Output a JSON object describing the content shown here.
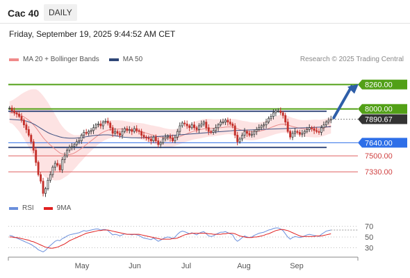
{
  "header": {
    "title": "Cac 40",
    "timeframe": "DAILY"
  },
  "timestamp": "Friday, September 19, 2025 9:44:52 AM CET",
  "legend": {
    "ma20_label": "MA 20 + Bollinger Bands",
    "ma50_label": "MA 50",
    "credit": "Research © 2025 Trading Central"
  },
  "rsi_legend": {
    "rsi_label": "RSI",
    "ma_label": "9MA"
  },
  "colors": {
    "green": "#52a017",
    "blue": "#2e6fe8",
    "navy": "#2a3f6b",
    "red_line": "#e88a8a",
    "band_fill": "#fde3e3",
    "ma20": "#e88a8a",
    "ma50": "#3b4f80",
    "candle_up": "#3a3a3a",
    "candle_up_body": "#ffffff",
    "candle_down": "#c4302b",
    "rsi": "#6a8fdc",
    "rsi_ma": "#e02020"
  },
  "chart_data": [
    {
      "type": "candlestick",
      "title": "Cac 40",
      "x_month_labels": [
        "May",
        "Jun",
        "Jul",
        "Aug",
        "Sep"
      ],
      "ylim": [
        7050,
        8420
      ],
      "levels": [
        {
          "value": 8260,
          "label": "8260.00",
          "style": "resistance",
          "color": "#52a017"
        },
        {
          "value": 8000,
          "label": "8000.00",
          "style": "resistance",
          "color": "#52a017"
        },
        {
          "value": 7890.67,
          "label": "7890.67",
          "style": "last",
          "color": "#333333"
        },
        {
          "value": 7640,
          "label": "7640.00",
          "style": "pivot",
          "color": "#2e6fe8"
        },
        {
          "value": 7500,
          "label": "7500.00",
          "style": "support",
          "color": "#e06060"
        },
        {
          "value": 7330,
          "label": "7330.00",
          "style": "support",
          "color": "#e06060"
        }
      ],
      "series_closes": [
        8010,
        7980,
        7960,
        7945,
        7920,
        7880,
        7830,
        7780,
        7720,
        7650,
        7560,
        7430,
        7300,
        7230,
        7100,
        7150,
        7240,
        7300,
        7380,
        7420,
        7400,
        7350,
        7460,
        7500,
        7560,
        7590,
        7600,
        7620,
        7650,
        7660,
        7720,
        7750,
        7740,
        7760,
        7770,
        7800,
        7830,
        7840,
        7820,
        7860,
        7870,
        7850,
        7800,
        7740,
        7760,
        7740,
        7720,
        7760,
        7790,
        7770,
        7780,
        7760,
        7790,
        7770,
        7760,
        7720,
        7700,
        7690,
        7680,
        7660,
        7700,
        7660,
        7620,
        7640,
        7680,
        7700,
        7710,
        7690,
        7660,
        7700,
        7760,
        7820,
        7850,
        7840,
        7820,
        7800,
        7830,
        7800,
        7780,
        7820,
        7840,
        7860,
        7800,
        7760,
        7750,
        7770,
        7800,
        7830,
        7860,
        7860,
        7880,
        7860,
        7840,
        7820,
        7720,
        7650,
        7680,
        7720,
        7760,
        7740,
        7720,
        7730,
        7760,
        7780,
        7800,
        7820,
        7830,
        7860,
        7900,
        7920,
        7960,
        7980,
        7980,
        7960,
        7930,
        7860,
        7760,
        7700,
        7740,
        7760,
        7750,
        7730,
        7740,
        7760,
        7780,
        7800,
        7790,
        7770,
        7760,
        7750,
        7800,
        7830,
        7860,
        7880,
        7890.67
      ],
      "ma20": [
        7960,
        7960,
        7955,
        7948,
        7940,
        7930,
        7915,
        7898,
        7880,
        7858,
        7830,
        7800,
        7765,
        7730,
        7695,
        7665,
        7640,
        7615,
        7595,
        7570,
        7550,
        7530,
        7520,
        7515,
        7512,
        7515,
        7520,
        7530,
        7545,
        7562,
        7580,
        7600,
        7620,
        7640,
        7660,
        7680,
        7700,
        7720,
        7738,
        7752,
        7764,
        7774,
        7780,
        7782,
        7784,
        7786,
        7786,
        7786,
        7784,
        7780,
        7776,
        7772,
        7768,
        7764,
        7760,
        7756,
        7750,
        7742,
        7734,
        7726,
        7720,
        7712,
        7706,
        7700,
        7694,
        7690,
        7688,
        7686,
        7686,
        7690,
        7696,
        7706,
        7716,
        7726,
        7736,
        7746,
        7756,
        7764,
        7770,
        7776,
        7782,
        7788,
        7792,
        7794,
        7794,
        7794,
        7796,
        7798,
        7800,
        7803,
        7806,
        7808,
        7808,
        7805,
        7800,
        7790,
        7780,
        7772,
        7766,
        7762,
        7758,
        7756,
        7756,
        7758,
        7762,
        7768,
        7774,
        7782,
        7792,
        7802,
        7812,
        7822,
        7830,
        7836,
        7838,
        7836,
        7830,
        7820,
        7812,
        7806,
        7800,
        7794,
        7790,
        7788,
        7786,
        7786,
        7786,
        7786,
        7786,
        7786,
        7790,
        7796,
        7804,
        7812,
        7820
      ],
      "ma50": [
        7890,
        7888,
        7886,
        7884,
        7882,
        7880,
        7876,
        7870,
        7862,
        7852,
        7840,
        7826,
        7810,
        7794,
        7778,
        7762,
        7748,
        7736,
        7726,
        7718,
        7710,
        7702,
        7696,
        7692,
        7690,
        7688,
        7688,
        7688,
        7690,
        7692,
        7696,
        7700,
        7704,
        7708,
        7712,
        7716,
        7718,
        7720,
        7722,
        7724,
        7724,
        7724,
        7722,
        7718,
        7714,
        7710,
        7706,
        7702,
        7698,
        7696,
        7694,
        7692,
        7692,
        7692,
        7692,
        7693,
        7694,
        7696,
        7698,
        7700,
        7702,
        7704,
        7706,
        7708,
        7710,
        7712,
        7714,
        7716,
        7718,
        7720,
        7722,
        7724,
        7726,
        7728,
        7730,
        7732,
        7734,
        7736,
        7738,
        7740,
        7742,
        7744,
        7746,
        7748,
        7750,
        7752,
        7754,
        7756,
        7758,
        7760,
        7762,
        7764,
        7766,
        7768,
        7770,
        7771,
        7772,
        7773,
        7774,
        7775,
        7776,
        7777,
        7778,
        7779,
        7780,
        7781,
        7782,
        7783,
        7784,
        7785,
        7786,
        7787,
        7788,
        7789,
        7790,
        7791,
        7792,
        7793,
        7794,
        7795,
        7796,
        7797,
        7798,
        7799,
        7800,
        7801,
        7802,
        7803,
        7804,
        7805,
        7806,
        7807,
        7808,
        7809,
        7810
      ],
      "upper_band_width": [
        120,
        130,
        150,
        175,
        200,
        230,
        260,
        290,
        320,
        350,
        380,
        410,
        430,
        440,
        445,
        440,
        430,
        410,
        390,
        370,
        345,
        320,
        295,
        270,
        250,
        230,
        210,
        190,
        175,
        160,
        150,
        140,
        130,
        125,
        120,
        115,
        112,
        110,
        108,
        106,
        104,
        102,
        100,
        98,
        96,
        94,
        92,
        90,
        88,
        86,
        86,
        86,
        86,
        88,
        90,
        92,
        94,
        96,
        98,
        100,
        102,
        104,
        106,
        106,
        104,
        102,
        100,
        98,
        96,
        94,
        92,
        90,
        90,
        90,
        92,
        94,
        96,
        98,
        100,
        102,
        104,
        104,
        102,
        100,
        98,
        96,
        94,
        92,
        90,
        88,
        86,
        86,
        86,
        88,
        92,
        96,
        100,
        102,
        104,
        104,
        102,
        100,
        98,
        96,
        94,
        92,
        92,
        92,
        94,
        96,
        98,
        100,
        102,
        102,
        100,
        98,
        96,
        94,
        92,
        92,
        90,
        90,
        90,
        92,
        94,
        96,
        98,
        100,
        100,
        98,
        96,
        94,
        92,
        90,
        90
      ]
    },
    {
      "type": "line",
      "title": "RSI",
      "ylim": [
        20,
        80
      ],
      "yticks": [
        70,
        50,
        30
      ],
      "series": [
        {
          "name": "RSI",
          "values": [
            53,
            52,
            50,
            48,
            46,
            44,
            42,
            40,
            38,
            36,
            33,
            30,
            26,
            24,
            22,
            25,
            30,
            34,
            38,
            42,
            44,
            43,
            47,
            49,
            52,
            54,
            55,
            56,
            57,
            58,
            60,
            62,
            61,
            62,
            63,
            64,
            65,
            65,
            63,
            64,
            64,
            62,
            58,
            54,
            55,
            54,
            52,
            54,
            56,
            55,
            55,
            54,
            55,
            54,
            53,
            50,
            48,
            47,
            46,
            45,
            48,
            45,
            42,
            44,
            47,
            49,
            50,
            49,
            47,
            50,
            55,
            59,
            61,
            60,
            58,
            56,
            58,
            56,
            54,
            57,
            59,
            60,
            56,
            52,
            51,
            52,
            55,
            57,
            59,
            59,
            60,
            58,
            56,
            54,
            46,
            42,
            45,
            49,
            52,
            50,
            49,
            50,
            53,
            55,
            57,
            58,
            59,
            61,
            63,
            64,
            66,
            67,
            67,
            65,
            62,
            56,
            50,
            46,
            49,
            51,
            50,
            49,
            50,
            52,
            54,
            55,
            54,
            53,
            52,
            51,
            55,
            58,
            61,
            62,
            63
          ]
        },
        {
          "name": "9MA",
          "values": [
            50,
            50,
            49,
            49,
            48,
            47,
            46,
            45,
            44,
            42,
            41,
            39,
            37,
            35,
            33,
            31,
            30,
            29,
            29,
            30,
            31,
            33,
            35,
            37,
            40,
            43,
            45,
            47,
            49,
            51,
            53,
            55,
            57,
            58,
            59,
            60,
            61,
            62,
            62,
            63,
            63,
            63,
            62,
            61,
            60,
            59,
            58,
            57,
            56,
            55,
            55,
            55,
            55,
            55,
            55,
            54,
            53,
            52,
            51,
            50,
            49,
            48,
            47,
            46,
            46,
            46,
            46,
            46,
            47,
            47,
            48,
            50,
            52,
            54,
            55,
            56,
            57,
            57,
            57,
            57,
            57,
            57,
            57,
            56,
            56,
            55,
            55,
            55,
            55,
            56,
            56,
            57,
            57,
            57,
            56,
            54,
            52,
            51,
            50,
            49,
            49,
            49,
            50,
            50,
            51,
            52,
            53,
            55,
            56,
            58,
            60,
            62,
            63,
            64,
            64,
            63,
            62,
            60,
            58,
            56,
            54,
            52,
            51,
            51,
            51,
            51,
            51,
            51,
            52,
            52,
            52,
            53,
            54,
            55,
            56
          ]
        }
      ]
    }
  ]
}
